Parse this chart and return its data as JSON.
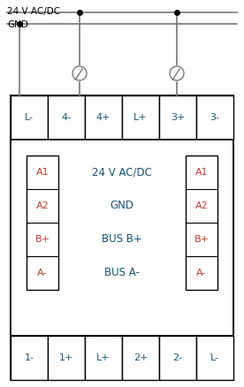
{
  "title_top1": "24 V AC/DC",
  "title_top2": "GND",
  "top_terminals": [
    "L-",
    "4-",
    "4+",
    "L+",
    "3+",
    "3-"
  ],
  "bottom_terminals": [
    "1-",
    "1+",
    "L+",
    "2+",
    "2-",
    "L-"
  ],
  "left_labels": [
    "A1",
    "A2",
    "B+",
    "A-"
  ],
  "right_labels": [
    "A1",
    "A2",
    "B+",
    "A-"
  ],
  "center_labels": [
    "24 V AC/DC",
    "GND",
    "BUS B+",
    "BUS A-"
  ],
  "box_color": "#000000",
  "text_color_black": "#000000",
  "text_color_blue": "#1a5276",
  "text_color_orange": "#c0392b",
  "bg_color": "#ffffff",
  "line_color": "#777777",
  "figw": 2.76,
  "figh": 4.38,
  "dpi": 100
}
